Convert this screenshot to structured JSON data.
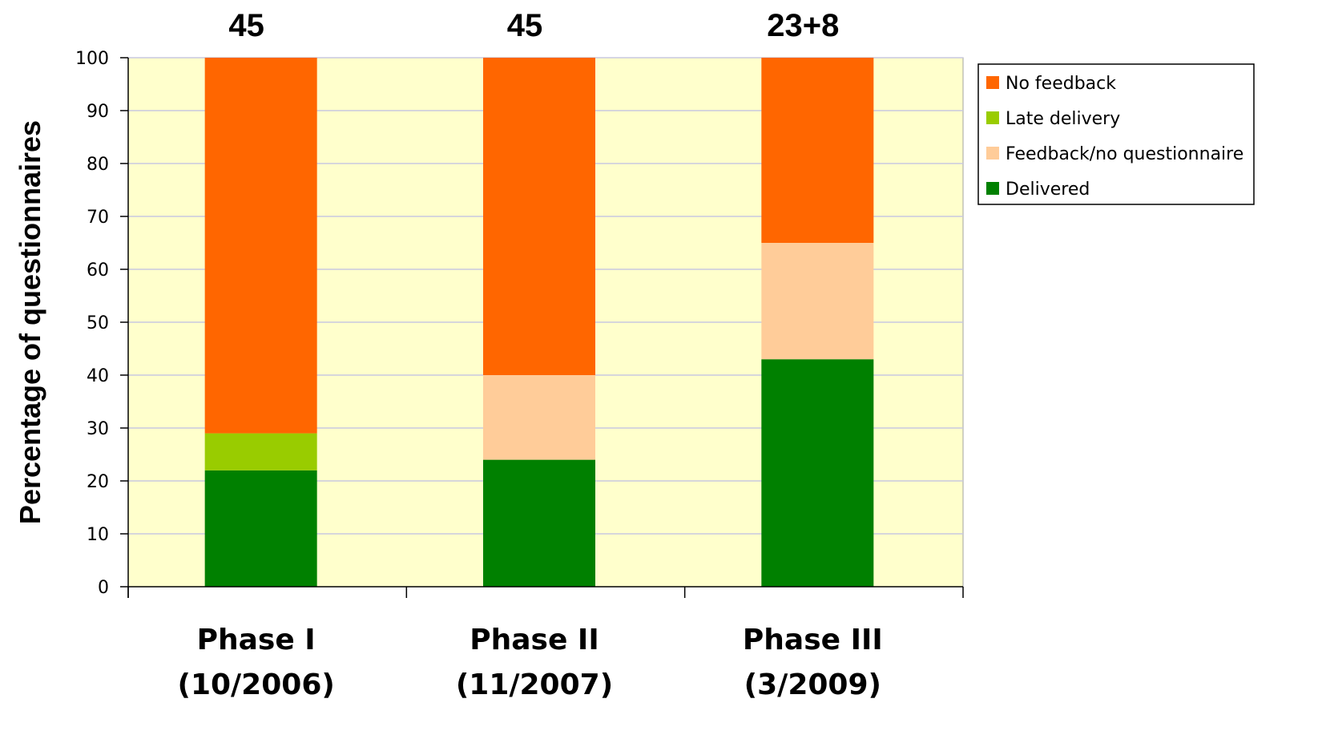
{
  "chart_data": {
    "type": "bar",
    "stacked": true,
    "categories": [
      "Phase I",
      "Phase II",
      "Phase III"
    ],
    "category_dates": [
      "(10/2006)",
      "(11/2007)",
      "(3/2009)"
    ],
    "top_labels": [
      "45",
      "45",
      "23+8"
    ],
    "ylabel": "Percentage of questionnaires",
    "xlabel": "",
    "ylim": [
      0,
      100
    ],
    "yticks": [
      "0",
      "10",
      "20",
      "30",
      "40",
      "50",
      "60",
      "70",
      "80",
      "90",
      "100"
    ],
    "grid": true,
    "legend_position": "right",
    "plot_background": "#FFFFCC",
    "series": [
      {
        "name": "Delivered",
        "color": "#008000",
        "values": [
          22,
          24,
          43
        ]
      },
      {
        "name": "Late delivery",
        "color": "#99CC00",
        "values": [
          7,
          0,
          0
        ]
      },
      {
        "name": "Feedback/no questionnaire",
        "color": "#FFCC99",
        "values": [
          0,
          16,
          22
        ]
      },
      {
        "name": "No feedback",
        "color": "#FF6600",
        "values": [
          71,
          60,
          35
        ]
      }
    ],
    "legend_order": [
      "No feedback",
      "Late delivery",
      "Feedback/no questionnaire",
      "Delivered"
    ]
  }
}
